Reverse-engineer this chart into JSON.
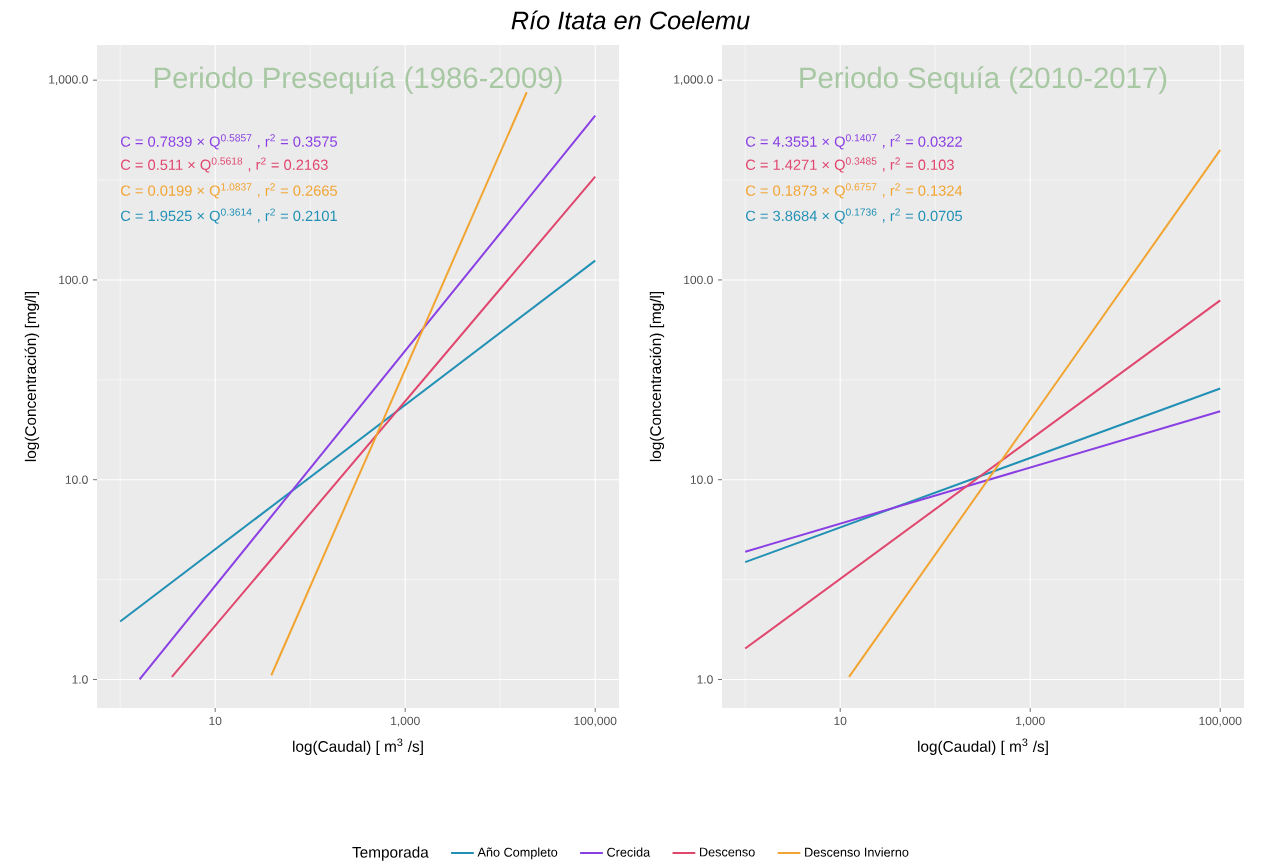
{
  "chart_data": [
    {
      "type": "line",
      "title": "Río Itata en Coelemu",
      "xlabel": "log(Caudal) [ m$^{3}$ /s]",
      "ylabel": "log(Concentración) [mg/l]",
      "log": "xy",
      "grid": true,
      "legend": "bottom",
      "legend_title": "Temporada",
      "xlim": [
        0.57,
        178000
      ],
      "ylim": [
        0.72,
        1500
      ],
      "xticks": [
        {
          "value": 10,
          "label": "10"
        },
        {
          "value": 1000,
          "label": "1,000"
        },
        {
          "value": 100000,
          "label": "100,000"
        }
      ],
      "yticks": [
        {
          "value": 1,
          "label": "1.0"
        },
        {
          "value": 10,
          "label": "10.0"
        },
        {
          "value": 100,
          "label": "100.0"
        },
        {
          "value": 1000,
          "label": "1,000.0"
        }
      ],
      "annotations": [
        "Periodo Presequía (1986-2009)",
        "C = 0.7839 × Q$^{0.5857}$ , r$^{2}$ = 0.3575",
        "C = 0.511 × Q$^{0.5618}$ , r$^{2}$ = 0.2163",
        "C = 0.0199 × Q$^{1.0837}$ , r$^{2}$ = 0.2665",
        "C = 1.9525 × Q$^{0.3614}$ , r$^{2}$ = 0.2101"
      ],
      "series": [
        {
          "name": "Año Completo",
          "color": "#2290b5",
          "x": [
            1,
            100000
          ],
          "values": [
            1.95,
            125
          ]
        },
        {
          "name": "Crecida",
          "color": "#8a3fe3",
          "x": [
            1.6,
            100000
          ],
          "values": [
            1.0,
            665
          ]
        },
        {
          "name": "Descenso",
          "color": "#e0466e",
          "x": [
            3.5,
            100000
          ],
          "values": [
            1.03,
            329
          ]
        },
        {
          "name": "Descenso Invierno",
          "color": "#f2a431",
          "x": [
            39,
            19000
          ],
          "values": [
            1.05,
            870
          ]
        }
      ]
    },
    {
      "type": "line",
      "xlabel": "log(Caudal) [ m$^{3}$ /s]",
      "ylabel": "log(Concentración) [mg/l]",
      "log": "xy",
      "grid": true,
      "xlim": [
        0.57,
        178000
      ],
      "ylim": [
        0.72,
        1500
      ],
      "xticks": [
        {
          "value": 10,
          "label": "10"
        },
        {
          "value": 1000,
          "label": "1,000"
        },
        {
          "value": 100000,
          "label": "100,000"
        }
      ],
      "yticks": [
        {
          "value": 1,
          "label": "1.0"
        },
        {
          "value": 10,
          "label": "10.0"
        },
        {
          "value": 100,
          "label": "100.0"
        },
        {
          "value": 1000,
          "label": "1,000.0"
        }
      ],
      "annotations": [
        "Periodo Sequía (2010-2017)",
        "C = 4.3551 × Q$^{0.1407}$ , r$^{2}$ = 0.0322",
        "C = 1.4271 × Q$^{0.3485}$ , r$^{2}$ = 0.103",
        "C = 0.1873 × Q$^{0.6757}$ , r$^{2}$ = 0.1324",
        "C = 3.8684 × Q$^{0.1736}$ , r$^{2}$ = 0.0705"
      ],
      "series": [
        {
          "color": "#2290b5",
          "x": [
            1,
            100000
          ],
          "values": [
            3.87,
            28.6
          ]
        },
        {
          "color": "#8a3fe3",
          "x": [
            1,
            100000
          ],
          "values": [
            4.36,
            22.0
          ]
        },
        {
          "color": "#e0466e",
          "x": [
            1,
            100000
          ],
          "values": [
            1.43,
            79
          ]
        },
        {
          "color": "#f2a431",
          "x": [
            12.4,
            100000
          ],
          "values": [
            1.03,
            448
          ]
        }
      ]
    }
  ]
}
